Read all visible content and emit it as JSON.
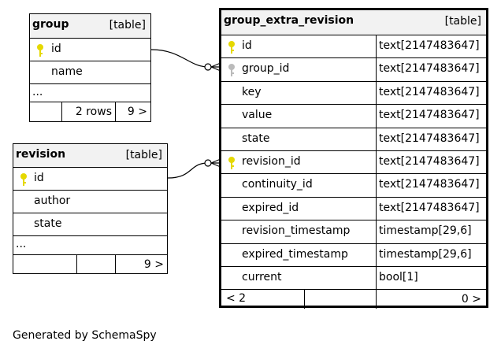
{
  "tables": {
    "group": {
      "name": "group",
      "type": "[table]",
      "columns": [
        {
          "name": "id",
          "key": "primary"
        },
        {
          "name": "name",
          "key": "none"
        }
      ],
      "ellipsis": "...",
      "rows_label": "2 rows",
      "children_label": "9 >"
    },
    "revision": {
      "name": "revision",
      "type": "[table]",
      "columns": [
        {
          "name": "id",
          "key": "primary"
        },
        {
          "name": "author",
          "key": "none"
        },
        {
          "name": "state",
          "key": "none"
        }
      ],
      "ellipsis": "...",
      "children_label": "9 >"
    },
    "group_extra_revision": {
      "name": "group_extra_revision",
      "type": "[table]",
      "columns": [
        {
          "name": "id",
          "type": "text[2147483647]",
          "key": "primary"
        },
        {
          "name": "group_id",
          "type": "text[2147483647]",
          "key": "foreign"
        },
        {
          "name": "key",
          "type": "text[2147483647]",
          "key": "none"
        },
        {
          "name": "value",
          "type": "text[2147483647]",
          "key": "none"
        },
        {
          "name": "state",
          "type": "text[2147483647]",
          "key": "none"
        },
        {
          "name": "revision_id",
          "type": "text[2147483647]",
          "key": "primary"
        },
        {
          "name": "continuity_id",
          "type": "text[2147483647]",
          "key": "none"
        },
        {
          "name": "expired_id",
          "type": "text[2147483647]",
          "key": "none"
        },
        {
          "name": "revision_timestamp",
          "type": "timestamp[29,6]",
          "key": "none"
        },
        {
          "name": "expired_timestamp",
          "type": "timestamp[29,6]",
          "key": "none"
        },
        {
          "name": "current",
          "type": "bool[1]",
          "key": "none"
        }
      ],
      "parents_label": "< 2",
      "children_label": "0 >"
    }
  },
  "footer": "Generated by SchemaSpy",
  "colors": {
    "primary_key": "#e5d800",
    "foreign_key": "#bbbbbb",
    "header_bg": "#f2f2f2"
  }
}
